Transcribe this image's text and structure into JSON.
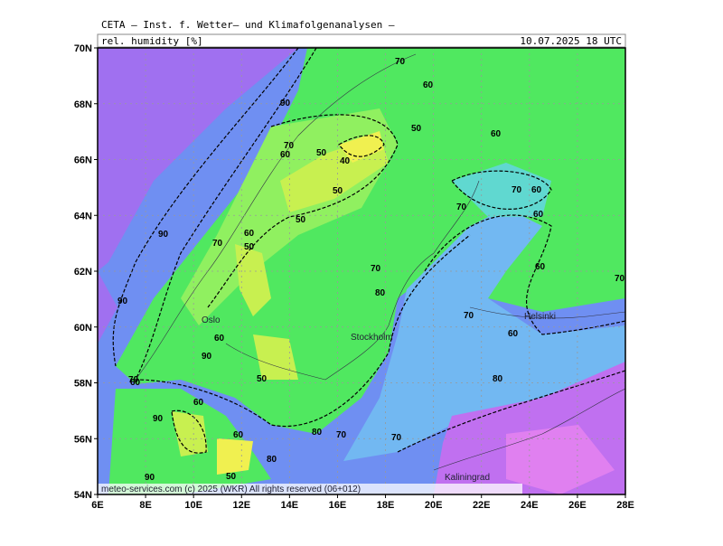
{
  "header": {
    "title": "CETA – Inst. f. Wetter– und Klimafolgenanalysen –",
    "parameter": "rel. humidity [%]",
    "valid_time": "10.07.2025 18 UTC"
  },
  "map": {
    "lat_ticks": [
      {
        "value": 70,
        "label": "70N"
      },
      {
        "value": 68,
        "label": "68N"
      },
      {
        "value": 66,
        "label": "66N"
      },
      {
        "value": 64,
        "label": "64N"
      },
      {
        "value": 62,
        "label": "62N"
      },
      {
        "value": 60,
        "label": "60N"
      },
      {
        "value": 58,
        "label": "58N"
      },
      {
        "value": 56,
        "label": "56N"
      },
      {
        "value": 54,
        "label": "54N"
      }
    ],
    "lon_ticks": [
      {
        "value": 6,
        "label": "6E"
      },
      {
        "value": 8,
        "label": "8E"
      },
      {
        "value": 10,
        "label": "10E"
      },
      {
        "value": 12,
        "label": "12E"
      },
      {
        "value": 14,
        "label": "14E"
      },
      {
        "value": 16,
        "label": "16E"
      },
      {
        "value": 18,
        "label": "18E"
      },
      {
        "value": 20,
        "label": "20E"
      },
      {
        "value": 22,
        "label": "22E"
      },
      {
        "value": 24,
        "label": "24E"
      },
      {
        "value": 26,
        "label": "26E"
      },
      {
        "value": 28,
        "label": "28E"
      }
    ],
    "cities": [
      "Oslo",
      "Stockholm",
      "Helsinki",
      "Kaliningrad"
    ],
    "contour_labels": [
      70,
      60,
      90,
      50,
      60,
      70,
      60,
      50,
      40,
      50,
      50,
      60,
      70,
      70,
      60,
      90,
      70,
      60,
      50,
      60,
      90,
      70,
      80,
      70,
      60,
      70,
      60,
      90,
      60,
      50,
      60,
      80,
      90,
      70,
      80,
      70,
      80,
      60,
      90,
      50,
      70
    ]
  },
  "footer": "meteo-services.com (c) 2025 (WKR) All rights reserved (06+012)"
}
